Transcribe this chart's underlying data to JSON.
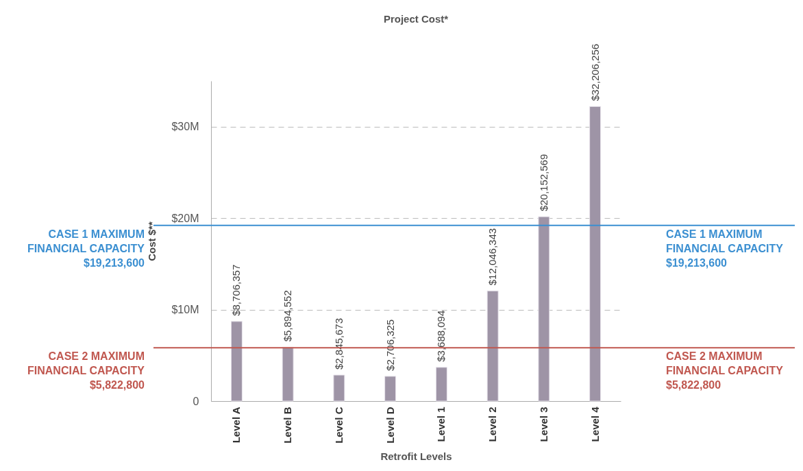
{
  "chart_data": {
    "type": "bar",
    "title": "Project Cost*",
    "xlabel": "Retrofit Levels",
    "ylabel": "Cost $**",
    "categories": [
      "Level A",
      "Level B",
      "Level C",
      "Level D",
      "Level 1",
      "Level 2",
      "Level 3",
      "Level 4"
    ],
    "values": [
      8706357,
      5894552,
      2845673,
      2706325,
      3688094,
      12046343,
      20152569,
      32206256
    ],
    "value_labels": [
      "$8,706,357",
      "$5,894,552",
      "$2,845,673",
      "$2,706,325",
      "$3,688,094",
      "$12,046,343",
      "$20,152,569",
      "$32,206,256"
    ],
    "color": "#9e94a6",
    "ylim": [
      0,
      35000000
    ],
    "yticks": [
      0,
      {
        "value": 10000000,
        "label": "$10M"
      },
      {
        "value": 20000000,
        "label": "$20M"
      },
      {
        "value": 30000000,
        "label": "$30M"
      }
    ],
    "grid": "y",
    "ref_lines": [
      {
        "axis": "y",
        "value": 19213600,
        "label": "CASE 1 MAXIMUM\nFINANCIAL CAPACITY\n$19,213,600",
        "color": "#3b8fd1"
      },
      {
        "axis": "y",
        "value": 5822800,
        "label": "CASE 2 MAXIMUM\nFINANCIAL CAPACITY\n$5,822,800",
        "color": "#c0574f"
      }
    ]
  }
}
